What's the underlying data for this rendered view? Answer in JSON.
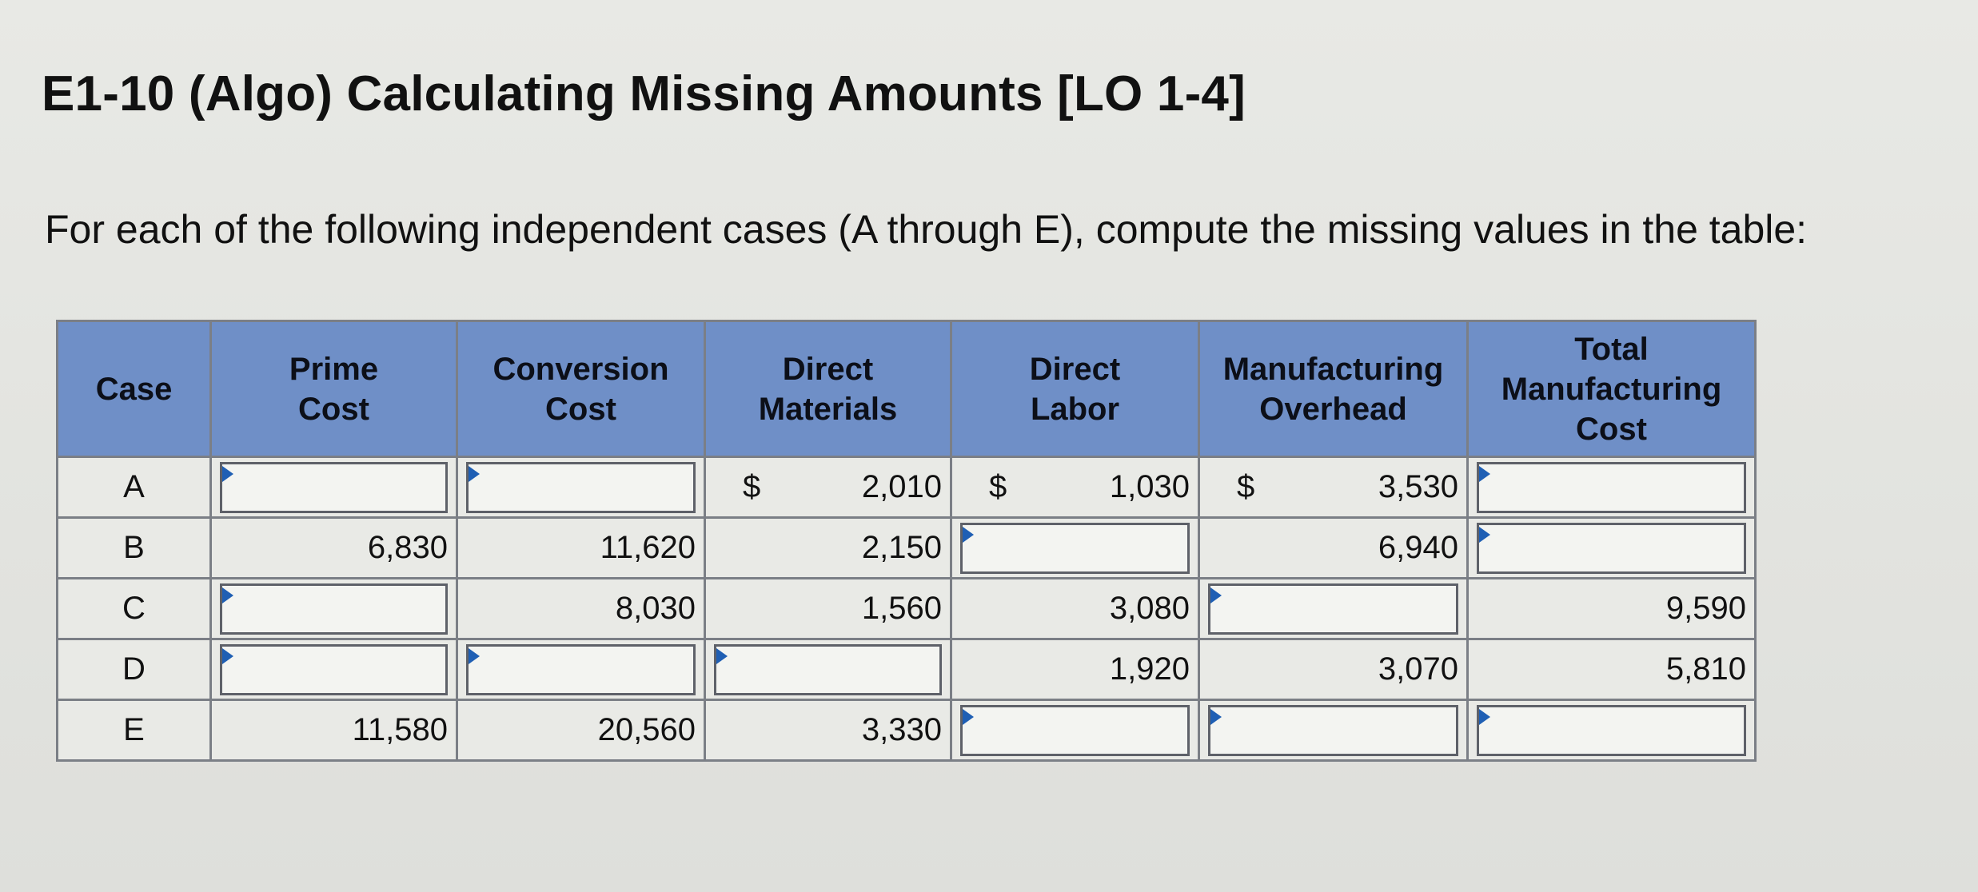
{
  "title": "E1-10 (Algo) Calculating Missing Amounts [LO 1-4]",
  "instructions": "For each of the following independent cases (A through E), compute the missing values in the table:",
  "table": {
    "headers": {
      "case": "Case",
      "prime_cost": [
        "Prime",
        "Cost"
      ],
      "conversion_cost": [
        "Conversion",
        "Cost"
      ],
      "direct_materials": [
        "Direct",
        "Materials"
      ],
      "direct_labor": [
        "Direct",
        "Labor"
      ],
      "manufacturing_overhead": [
        "Manufacturing",
        "Overhead"
      ],
      "total_manufacturing_cost": [
        "Total",
        "Manufacturing",
        "Cost"
      ]
    },
    "currency_symbol": "$",
    "rows": [
      {
        "case": "A",
        "prime_cost": "",
        "conversion_cost": "",
        "direct_materials": "2,010",
        "direct_labor": "1,030",
        "manufacturing_overhead": "3,530",
        "total_manufacturing_cost": ""
      },
      {
        "case": "B",
        "prime_cost": "6,830",
        "conversion_cost": "11,620",
        "direct_materials": "2,150",
        "direct_labor": "",
        "manufacturing_overhead": "6,940",
        "total_manufacturing_cost": ""
      },
      {
        "case": "C",
        "prime_cost": "",
        "conversion_cost": "8,030",
        "direct_materials": "1,560",
        "direct_labor": "3,080",
        "manufacturing_overhead": "",
        "total_manufacturing_cost": "9,590"
      },
      {
        "case": "D",
        "prime_cost": "",
        "conversion_cost": "",
        "direct_materials": "",
        "direct_labor": "1,920",
        "manufacturing_overhead": "3,070",
        "total_manufacturing_cost": "5,810"
      },
      {
        "case": "E",
        "prime_cost": "11,580",
        "conversion_cost": "20,560",
        "direct_materials": "3,330",
        "direct_labor": "",
        "manufacturing_overhead": "",
        "total_manufacturing_cost": ""
      }
    ]
  }
}
